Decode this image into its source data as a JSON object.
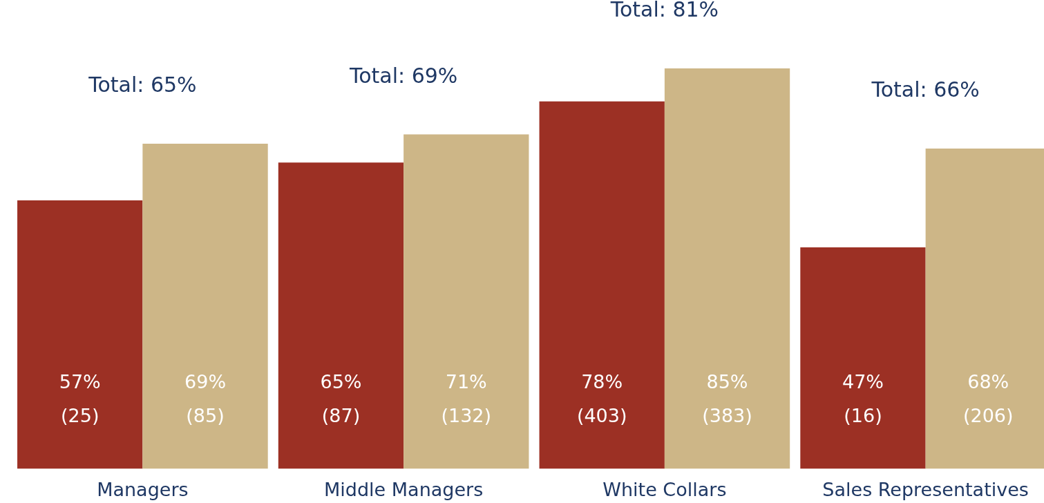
{
  "chart_data": {
    "type": "bar",
    "categories": [
      "Managers",
      "Middle Managers",
      "White Collars",
      "Sales Representatives"
    ],
    "series": [
      {
        "color": "#9c3024",
        "values": [
          57,
          65,
          78,
          47
        ],
        "value_labels": [
          "57%\n(25)",
          "65%\n(87)",
          "78%\n(403)",
          "47%\n(16)"
        ]
      },
      {
        "color": "#cdb687",
        "values": [
          69,
          71,
          85,
          68
        ],
        "value_labels": [
          "69%\n(85)",
          "71%\n(132)",
          "85%\n(383)",
          "68%\n(206)"
        ]
      }
    ],
    "annotations": [
      "Total: 65%",
      "Total: 69%",
      "Total: 81%",
      "Total: 66%"
    ],
    "grid": false
  }
}
